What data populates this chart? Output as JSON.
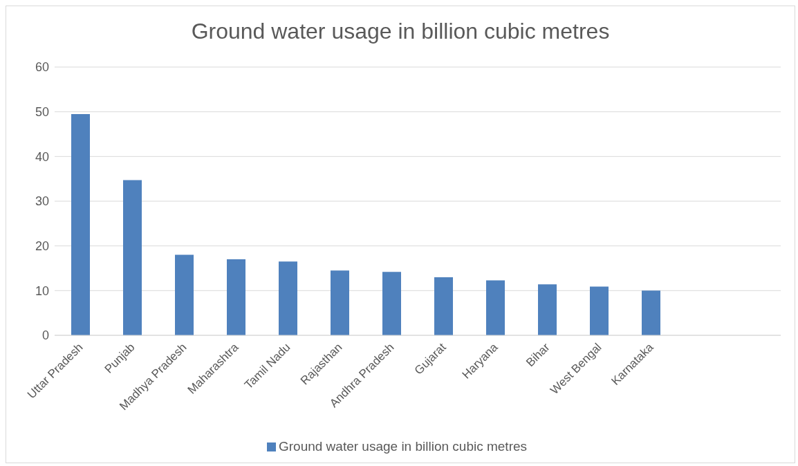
{
  "chart_data": {
    "type": "bar",
    "title": "Ground water usage in billion cubic metres",
    "categories": [
      "Uttar Pradesh",
      "Punjab",
      "Madhya Pradesh",
      "Maharashtra",
      "Tamil Nadu",
      "Rajasthan",
      "Andhra Pradesh",
      "Gujarat",
      "Haryana",
      "Bihar",
      "West Bengal",
      "Karnataka",
      null,
      null
    ],
    "series": [
      {
        "name": "Ground water usage in billion cubic metres",
        "color": "#4f81bd",
        "values": [
          49.5,
          34.7,
          18,
          17,
          16.5,
          14.5,
          14.2,
          13,
          12.3,
          11.4,
          10.9,
          10,
          null,
          null
        ]
      }
    ],
    "ylim": [
      0,
      60
    ],
    "yticks": [
      0,
      10,
      20,
      30,
      40,
      50,
      60
    ],
    "grid": "y",
    "legend": "bottom"
  }
}
